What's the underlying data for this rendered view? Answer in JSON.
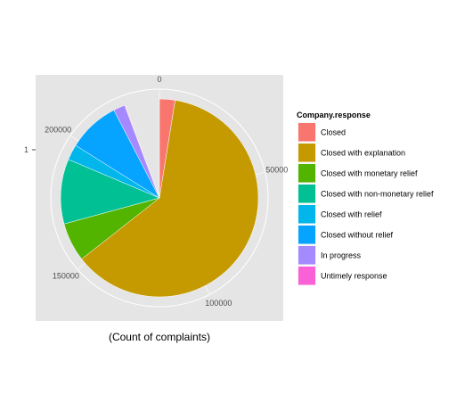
{
  "chart_data": {
    "type": "pie",
    "coord": "polar",
    "xlabel": "(Count of complaints)",
    "ylabel": "",
    "y_tick_labels": [
      "1"
    ],
    "theta_range": [
      0,
      236000
    ],
    "theta_ticks": [
      {
        "value": 0,
        "label": "0"
      },
      {
        "value": 50000,
        "label": "50000"
      },
      {
        "value": 100000,
        "label": "100000"
      },
      {
        "value": 150000,
        "label": "150000"
      },
      {
        "value": 200000,
        "label": "200000"
      }
    ],
    "legend": {
      "title": "Company.response",
      "placement": "right"
    },
    "series": [
      {
        "name": "Closed",
        "value": 6000,
        "color": "#F8766D"
      },
      {
        "name": "Closed with explanation",
        "value": 146000,
        "color": "#C49A00"
      },
      {
        "name": "Closed with monetary relief",
        "value": 15000,
        "color": "#53B400"
      },
      {
        "name": "Closed with non-monetary relief",
        "value": 25000,
        "color": "#00C094"
      },
      {
        "name": "Closed with relief",
        "value": 6000,
        "color": "#00B6EB"
      },
      {
        "name": "Closed without relief",
        "value": 20000,
        "color": "#06A4FF"
      },
      {
        "name": "In progress",
        "value": 4500,
        "color": "#A58AFF"
      },
      {
        "name": "Untimely response",
        "value": 200,
        "color": "#FB61D7"
      }
    ],
    "grid": true
  }
}
